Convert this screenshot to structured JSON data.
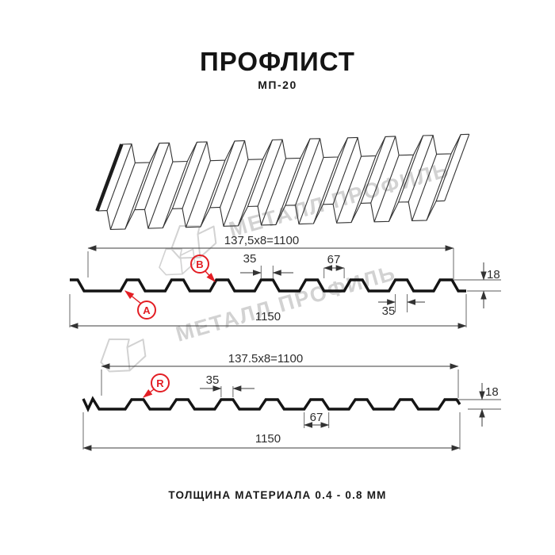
{
  "title": "ПРОФЛИСТ",
  "subtitle": "МП-20",
  "footer": "ТОЛЩИНА МАТЕРИАЛА 0.4 - 0.8 ММ",
  "watermark": {
    "text": "МЕТАЛЛ ПРОФИЛЬ"
  },
  "colors": {
    "accent_red": "#e31e24",
    "line": "#2e2e2e",
    "watermark_gray": "#d2d2d2"
  },
  "section_top": {
    "width_formula": "137,5x8=1100",
    "rib_top_width": "35",
    "valley_width": "67",
    "profile_height": "18",
    "rib_bottom_width": "35",
    "total_width": "1150",
    "label_a": "A",
    "label_b": "B"
  },
  "section_bottom": {
    "width_formula": "137.5x8=1100",
    "rib_top_width": "35",
    "valley_width": "67",
    "profile_height": "18",
    "total_width": "1150",
    "label_r": "R"
  }
}
